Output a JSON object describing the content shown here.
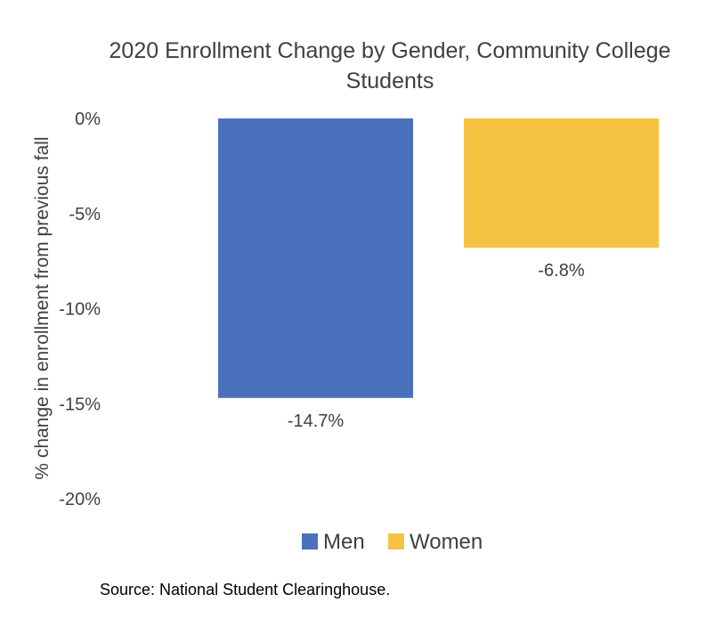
{
  "chart_data": {
    "type": "bar",
    "title_lines": [
      "2020 Enrollment Change by Gender, Community College",
      "Students"
    ],
    "ylabel": "% change in enrollment from previous fall",
    "xlabel": "",
    "categories": [
      "Men",
      "Women"
    ],
    "values": [
      -14.7,
      -6.8
    ],
    "data_labels": [
      "-14.7%",
      "-6.8%"
    ],
    "colors": [
      "#4A72BC",
      "#F5C242"
    ],
    "ylim": [
      -20,
      0
    ],
    "y_ticks": [
      0,
      -5,
      -10,
      -15,
      -20
    ],
    "y_tick_labels": [
      "0%",
      "-5%",
      "-10%",
      "-15%",
      "-20%"
    ],
    "grid": false,
    "legend": {
      "placement": "bottom",
      "entries": [
        {
          "name": "Men",
          "color": "#4A72BC"
        },
        {
          "name": "Women",
          "color": "#F5C242"
        }
      ]
    }
  },
  "source_note": "Source: National Student Clearinghouse."
}
